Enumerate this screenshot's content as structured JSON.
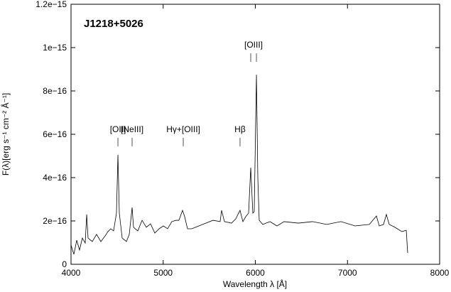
{
  "chart_data": {
    "type": "line",
    "annotation": "J1218+5026",
    "xlabel": "Wavelength λ [Å]",
    "ylabel": "F(λ)[erg s⁻¹ cm⁻² Å⁻¹]",
    "color": "#000000",
    "x": [
      4000,
      4031,
      4062,
      4092,
      4123,
      4154,
      4170,
      4185,
      4231,
      4277,
      4324,
      4370,
      4401,
      4432,
      4462,
      4493,
      4509,
      4524,
      4555,
      4601,
      4632,
      4663,
      4678,
      4724,
      4771,
      4817,
      4863,
      4909,
      4956,
      5002,
      5048,
      5094,
      5141,
      5171,
      5210,
      5233,
      5264,
      5310,
      5387,
      5464,
      5541,
      5618,
      5634,
      5665,
      5742,
      5788,
      5834,
      5865,
      5896,
      5927,
      5950,
      5973,
      5988,
      6012,
      6027,
      6042,
      6081,
      6158,
      6235,
      6312,
      6466,
      6620,
      6775,
      6929,
      7083,
      7237,
      7314,
      7345,
      7391,
      7422,
      7453,
      7514,
      7591,
      7638,
      7653
    ],
    "values": [
      8.9e-17,
      4.6e-17,
      1.11e-16,
      6.6e-17,
      1.21e-16,
      9.8e-17,
      2.3e-16,
      1.21e-16,
      1.05e-16,
      1.38e-16,
      1.05e-16,
      1.31e-16,
      1.51e-16,
      1.64e-16,
      1.54e-16,
      2.36e-16,
      5.05e-16,
      2.36e-16,
      1.21e-16,
      1.05e-16,
      1.38e-16,
      2.62e-16,
      1.71e-16,
      1.54e-16,
      2.03e-16,
      1.71e-16,
      1.87e-16,
      1.44e-16,
      1.64e-16,
      1.77e-16,
      1.64e-16,
      1.97e-16,
      2.03e-16,
      2.03e-16,
      2.49e-16,
      2.2e-16,
      1.64e-16,
      1.64e-16,
      1.77e-16,
      1.9e-16,
      2.03e-16,
      1.97e-16,
      2.49e-16,
      1.97e-16,
      1.9e-16,
      2.1e-16,
      2.49e-16,
      1.97e-16,
      2.2e-16,
      2.36e-16,
      4.46e-16,
      2.36e-16,
      2.43e-16,
      8.75e-16,
      4e-16,
      2.03e-16,
      1.84e-16,
      1.97e-16,
      1.77e-16,
      1.97e-16,
      1.9e-16,
      1.97e-16,
      1.84e-16,
      1.97e-16,
      1.77e-16,
      1.84e-16,
      2.23e-16,
      1.77e-16,
      1.84e-16,
      2.3e-16,
      1.84e-16,
      1.71e-16,
      1.51e-16,
      1.57e-16,
      5.2e-17
    ],
    "xlim": [
      4000,
      8000
    ],
    "xticks": [
      4000,
      5000,
      6000,
      7000,
      8000
    ],
    "ylim": [
      0,
      1.2e-15
    ],
    "yticks": [
      0,
      {
        "value": 2e-16,
        "label": "2e−16"
      },
      {
        "value": 4e-16,
        "label": "4e−16"
      },
      {
        "value": 6e-16,
        "label": "6e−16"
      },
      {
        "value": 8e-16,
        "label": "8e−16"
      },
      {
        "value": 1e-15,
        "label": "1e−15"
      },
      {
        "value": 1.2e-15,
        "label": "1.2e−15"
      }
    ],
    "line_labels": [
      {
        "text": "[OII]",
        "x": [
          4509
        ],
        "y": 6.1e-16
      },
      {
        "text": "[NeIII]",
        "x": [
          4663
        ],
        "y": 6.1e-16
      },
      {
        "text": "Hγ+[OIII]",
        "x": [
          5218
        ],
        "y": 6.1e-16
      },
      {
        "text": "Hβ",
        "x": [
          5834
        ],
        "y": 6.1e-16
      },
      {
        "text": "[OIII]",
        "x": [
          5950,
          6012
        ],
        "y": 1e-15
      }
    ]
  }
}
